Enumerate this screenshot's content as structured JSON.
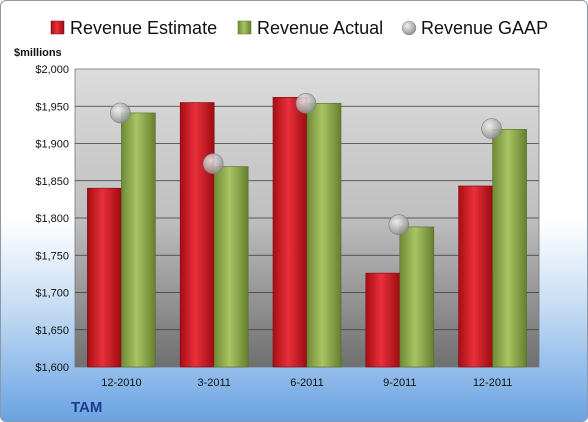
{
  "chart_data": {
    "type": "bar",
    "unit_label": "$millions",
    "ticker": "TAM",
    "categories": [
      "12-2010",
      "3-2011",
      "6-2011",
      "9-2011",
      "12-2011"
    ],
    "series": [
      {
        "name": "Revenue Estimate",
        "kind": "bar",
        "color": "#c8121b",
        "values": [
          1840,
          1955,
          1962,
          1726,
          1843
        ]
      },
      {
        "name": "Revenue Actual",
        "kind": "bar",
        "color": "#8daa48",
        "values": [
          1941,
          1869,
          1954,
          1788,
          1919
        ]
      },
      {
        "name": "Revenue GAAP",
        "kind": "marker",
        "color": "#b8b8b8",
        "values": [
          1941,
          1873,
          1954,
          1791,
          1920
        ]
      }
    ],
    "ylim": [
      1600,
      2000
    ],
    "yticks": [
      "$1,600",
      "$1,650",
      "$1,700",
      "$1,750",
      "$1,800",
      "$1,850",
      "$1,900",
      "$1,950",
      "$2,000"
    ],
    "grid": true,
    "legend_position": "top"
  }
}
